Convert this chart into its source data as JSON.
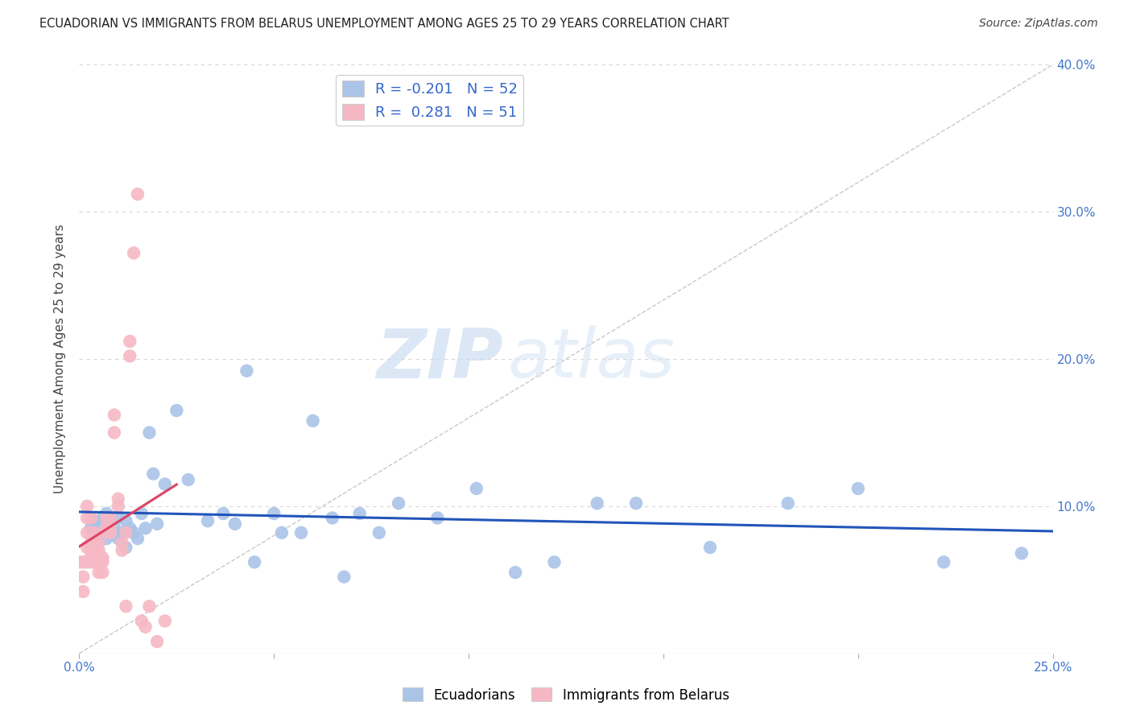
{
  "title": "ECUADORIAN VS IMMIGRANTS FROM BELARUS UNEMPLOYMENT AMONG AGES 25 TO 29 YEARS CORRELATION CHART",
  "source": "Source: ZipAtlas.com",
  "ylabel": "Unemployment Among Ages 25 to 29 years",
  "xlim": [
    0.0,
    0.25
  ],
  "ylim": [
    0.0,
    0.4
  ],
  "xticks": [
    0.0,
    0.05,
    0.1,
    0.15,
    0.2,
    0.25
  ],
  "xtick_labels": [
    "0.0%",
    "",
    "",
    "",
    "",
    "25.0%"
  ],
  "yticks": [
    0.0,
    0.1,
    0.2,
    0.3,
    0.4
  ],
  "ytick_labels_right": [
    "",
    "10.0%",
    "20.0%",
    "30.0%",
    "40.0%"
  ],
  "background_color": "#ffffff",
  "grid_color": "#d8d8d8",
  "blue_color": "#aac4e8",
  "pink_color": "#f5b8c4",
  "blue_line_color": "#2255bb",
  "pink_line_color": "#dd4466",
  "diag_color": "#c8c8c8",
  "watermark_zip": "ZIP",
  "watermark_atlas": "atlas",
  "legend_R_blue": "-0.201",
  "legend_N_blue": "52",
  "legend_R_pink": "0.281",
  "legend_N_pink": "51",
  "blue_scatter_x": [
    0.003,
    0.004,
    0.005,
    0.006,
    0.006,
    0.007,
    0.007,
    0.008,
    0.008,
    0.009,
    0.009,
    0.01,
    0.01,
    0.011,
    0.012,
    0.012,
    0.013,
    0.014,
    0.015,
    0.016,
    0.017,
    0.018,
    0.019,
    0.02,
    0.022,
    0.025,
    0.028,
    0.033,
    0.037,
    0.04,
    0.043,
    0.045,
    0.05,
    0.052,
    0.057,
    0.06,
    0.065,
    0.068,
    0.072,
    0.077,
    0.082,
    0.092,
    0.102,
    0.112,
    0.122,
    0.133,
    0.143,
    0.162,
    0.182,
    0.2,
    0.222,
    0.242
  ],
  "blue_scatter_y": [
    0.085,
    0.09,
    0.08,
    0.088,
    0.092,
    0.078,
    0.095,
    0.082,
    0.088,
    0.085,
    0.082,
    0.092,
    0.078,
    0.082,
    0.09,
    0.072,
    0.085,
    0.082,
    0.078,
    0.095,
    0.085,
    0.15,
    0.122,
    0.088,
    0.115,
    0.165,
    0.118,
    0.09,
    0.095,
    0.088,
    0.192,
    0.062,
    0.095,
    0.082,
    0.082,
    0.158,
    0.092,
    0.052,
    0.095,
    0.082,
    0.102,
    0.092,
    0.112,
    0.055,
    0.062,
    0.102,
    0.102,
    0.072,
    0.102,
    0.112,
    0.062,
    0.068
  ],
  "pink_scatter_x": [
    0.0,
    0.001,
    0.001,
    0.001,
    0.002,
    0.002,
    0.002,
    0.002,
    0.002,
    0.003,
    0.003,
    0.003,
    0.003,
    0.003,
    0.003,
    0.004,
    0.004,
    0.004,
    0.004,
    0.004,
    0.005,
    0.005,
    0.005,
    0.005,
    0.005,
    0.006,
    0.006,
    0.006,
    0.007,
    0.007,
    0.007,
    0.008,
    0.008,
    0.008,
    0.009,
    0.009,
    0.01,
    0.01,
    0.011,
    0.011,
    0.012,
    0.012,
    0.013,
    0.013,
    0.014,
    0.015,
    0.016,
    0.017,
    0.018,
    0.02,
    0.022
  ],
  "pink_scatter_y": [
    0.062,
    0.042,
    0.052,
    0.062,
    0.062,
    0.072,
    0.082,
    0.092,
    0.1,
    0.062,
    0.065,
    0.07,
    0.075,
    0.082,
    0.092,
    0.062,
    0.065,
    0.07,
    0.075,
    0.082,
    0.055,
    0.062,
    0.065,
    0.07,
    0.075,
    0.055,
    0.062,
    0.065,
    0.082,
    0.085,
    0.092,
    0.082,
    0.085,
    0.092,
    0.15,
    0.162,
    0.1,
    0.105,
    0.07,
    0.075,
    0.032,
    0.082,
    0.202,
    0.212,
    0.272,
    0.312,
    0.022,
    0.018,
    0.032,
    0.008,
    0.022
  ]
}
